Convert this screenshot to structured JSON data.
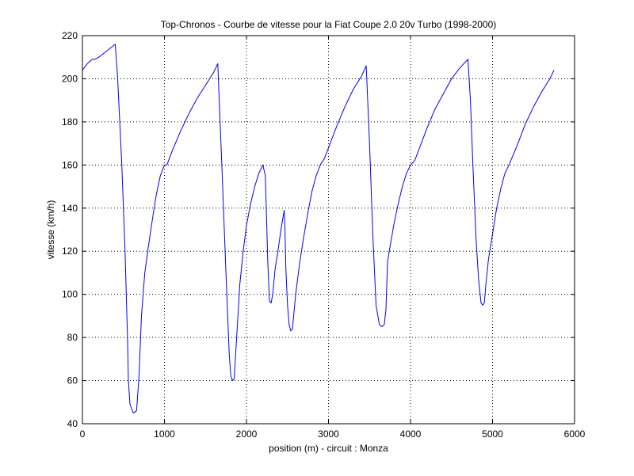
{
  "colors": {
    "background": "#ffffff",
    "axes": "#000000",
    "grid": "#000000",
    "series": "#0000ff"
  },
  "chart_data": {
    "type": "line",
    "title": "Top-Chronos - Courbe de vitesse pour la Fiat Coupe 2.0 20v Turbo (1998-2000)",
    "xlabel": "position (m) - circuit : Monza",
    "ylabel": "vitesse (km/h)",
    "xlim": [
      0,
      6000
    ],
    "ylim": [
      40,
      220
    ],
    "xticks": [
      0,
      1000,
      2000,
      3000,
      4000,
      5000,
      6000
    ],
    "yticks": [
      40,
      60,
      80,
      100,
      120,
      140,
      160,
      180,
      200,
      220
    ],
    "grid": true,
    "grid_style": "dotted",
    "legend": "none",
    "series": [
      {
        "color": "#0000ff",
        "x": [
          0,
          60,
          120,
          150,
          200,
          300,
          400,
          430,
          480,
          520,
          550,
          560,
          580,
          620,
          660,
          690,
          720,
          760,
          800,
          850,
          900,
          950,
          1000,
          1030,
          1100,
          1200,
          1300,
          1400,
          1500,
          1600,
          1650,
          1700,
          1750,
          1790,
          1810,
          1830,
          1850,
          1880,
          1920,
          1960,
          2000,
          2050,
          2100,
          2150,
          2200,
          2230,
          2260,
          2280,
          2300,
          2320,
          2350,
          2380,
          2420,
          2460,
          2470,
          2480,
          2500,
          2520,
          2540,
          2560,
          2600,
          2650,
          2700,
          2750,
          2800,
          2850,
          2900,
          2950,
          3000,
          3100,
          3200,
          3300,
          3400,
          3460,
          3500,
          3540,
          3580,
          3620,
          3650,
          3680,
          3700,
          3720,
          3750,
          3800,
          3850,
          3900,
          3950,
          4000,
          4050,
          4100,
          4200,
          4300,
          4400,
          4500,
          4600,
          4700,
          4730,
          4760,
          4800,
          4830,
          4860,
          4880,
          4900,
          4920,
          4950,
          5000,
          5050,
          5100,
          5150,
          5200,
          5300,
          5400,
          5500,
          5600,
          5700,
          5750
        ],
        "y": [
          204,
          207,
          209,
          209,
          210,
          213,
          216,
          200,
          160,
          120,
          80,
          60,
          49,
          45,
          46,
          62,
          90,
          110,
          121,
          134,
          146,
          155,
          160,
          160,
          167,
          176,
          184,
          191,
          197,
          203,
          207,
          160,
          110,
          72,
          62,
          60,
          61,
          80,
          105,
          120,
          132,
          142,
          150,
          156,
          160,
          155,
          115,
          97,
          96,
          100,
          112,
          119,
          130,
          139,
          130,
          112,
          95,
          86,
          83,
          84,
          100,
          115,
          127,
          138,
          148,
          155,
          160,
          163,
          168,
          178,
          187,
          195,
          201,
          206,
          170,
          128,
          95,
          86,
          85,
          86,
          93,
          115,
          122,
          133,
          142,
          150,
          156,
          160,
          162,
          167,
          177,
          186,
          193,
          200,
          205,
          209,
          190,
          160,
          125,
          107,
          96,
          95,
          96,
          105,
          116,
          128,
          140,
          149,
          156,
          160,
          169,
          179,
          187,
          194,
          200,
          204
        ]
      }
    ]
  }
}
